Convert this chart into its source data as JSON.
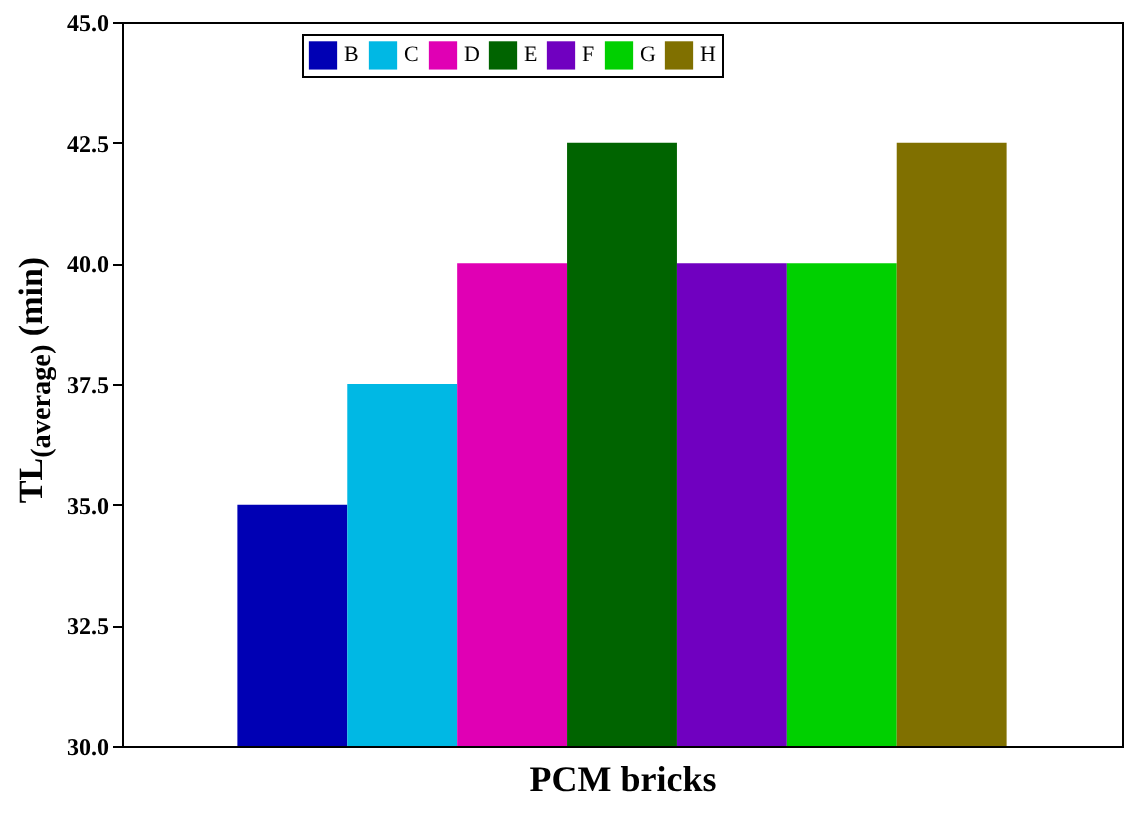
{
  "chart_data": {
    "type": "bar",
    "xlabel": "PCM bricks",
    "ylabel": "TL$_{(average)}$ (min)",
    "categories": [
      null
    ],
    "series": [
      {
        "name": "B",
        "color": "#0000b4",
        "values": [
          35
        ]
      },
      {
        "name": "C",
        "color": "#00b8e4",
        "values": [
          37.5
        ]
      },
      {
        "name": "D",
        "color": "#e000b4",
        "values": [
          40
        ]
      },
      {
        "name": "E",
        "color": "#006400",
        "values": [
          42.5
        ]
      },
      {
        "name": "F",
        "color": "#7000c0",
        "values": [
          40
        ]
      },
      {
        "name": "G",
        "color": "#00d000",
        "values": [
          40
        ]
      },
      {
        "name": "H",
        "color": "#807000",
        "values": [
          42.5
        ]
      }
    ],
    "ylim": [
      30,
      45
    ],
    "yticks": [
      {
        "value": 30,
        "label": "30.0"
      },
      {
        "value": 32.5,
        "label": "32.5"
      },
      {
        "value": 35,
        "label": "35.0"
      },
      {
        "value": 37.5,
        "label": "37.5"
      },
      {
        "value": 40,
        "label": "40.0"
      },
      {
        "value": 42.5,
        "label": "42.5"
      },
      {
        "value": 45,
        "label": "45.0"
      }
    ],
    "grid": false,
    "legend": "top"
  }
}
